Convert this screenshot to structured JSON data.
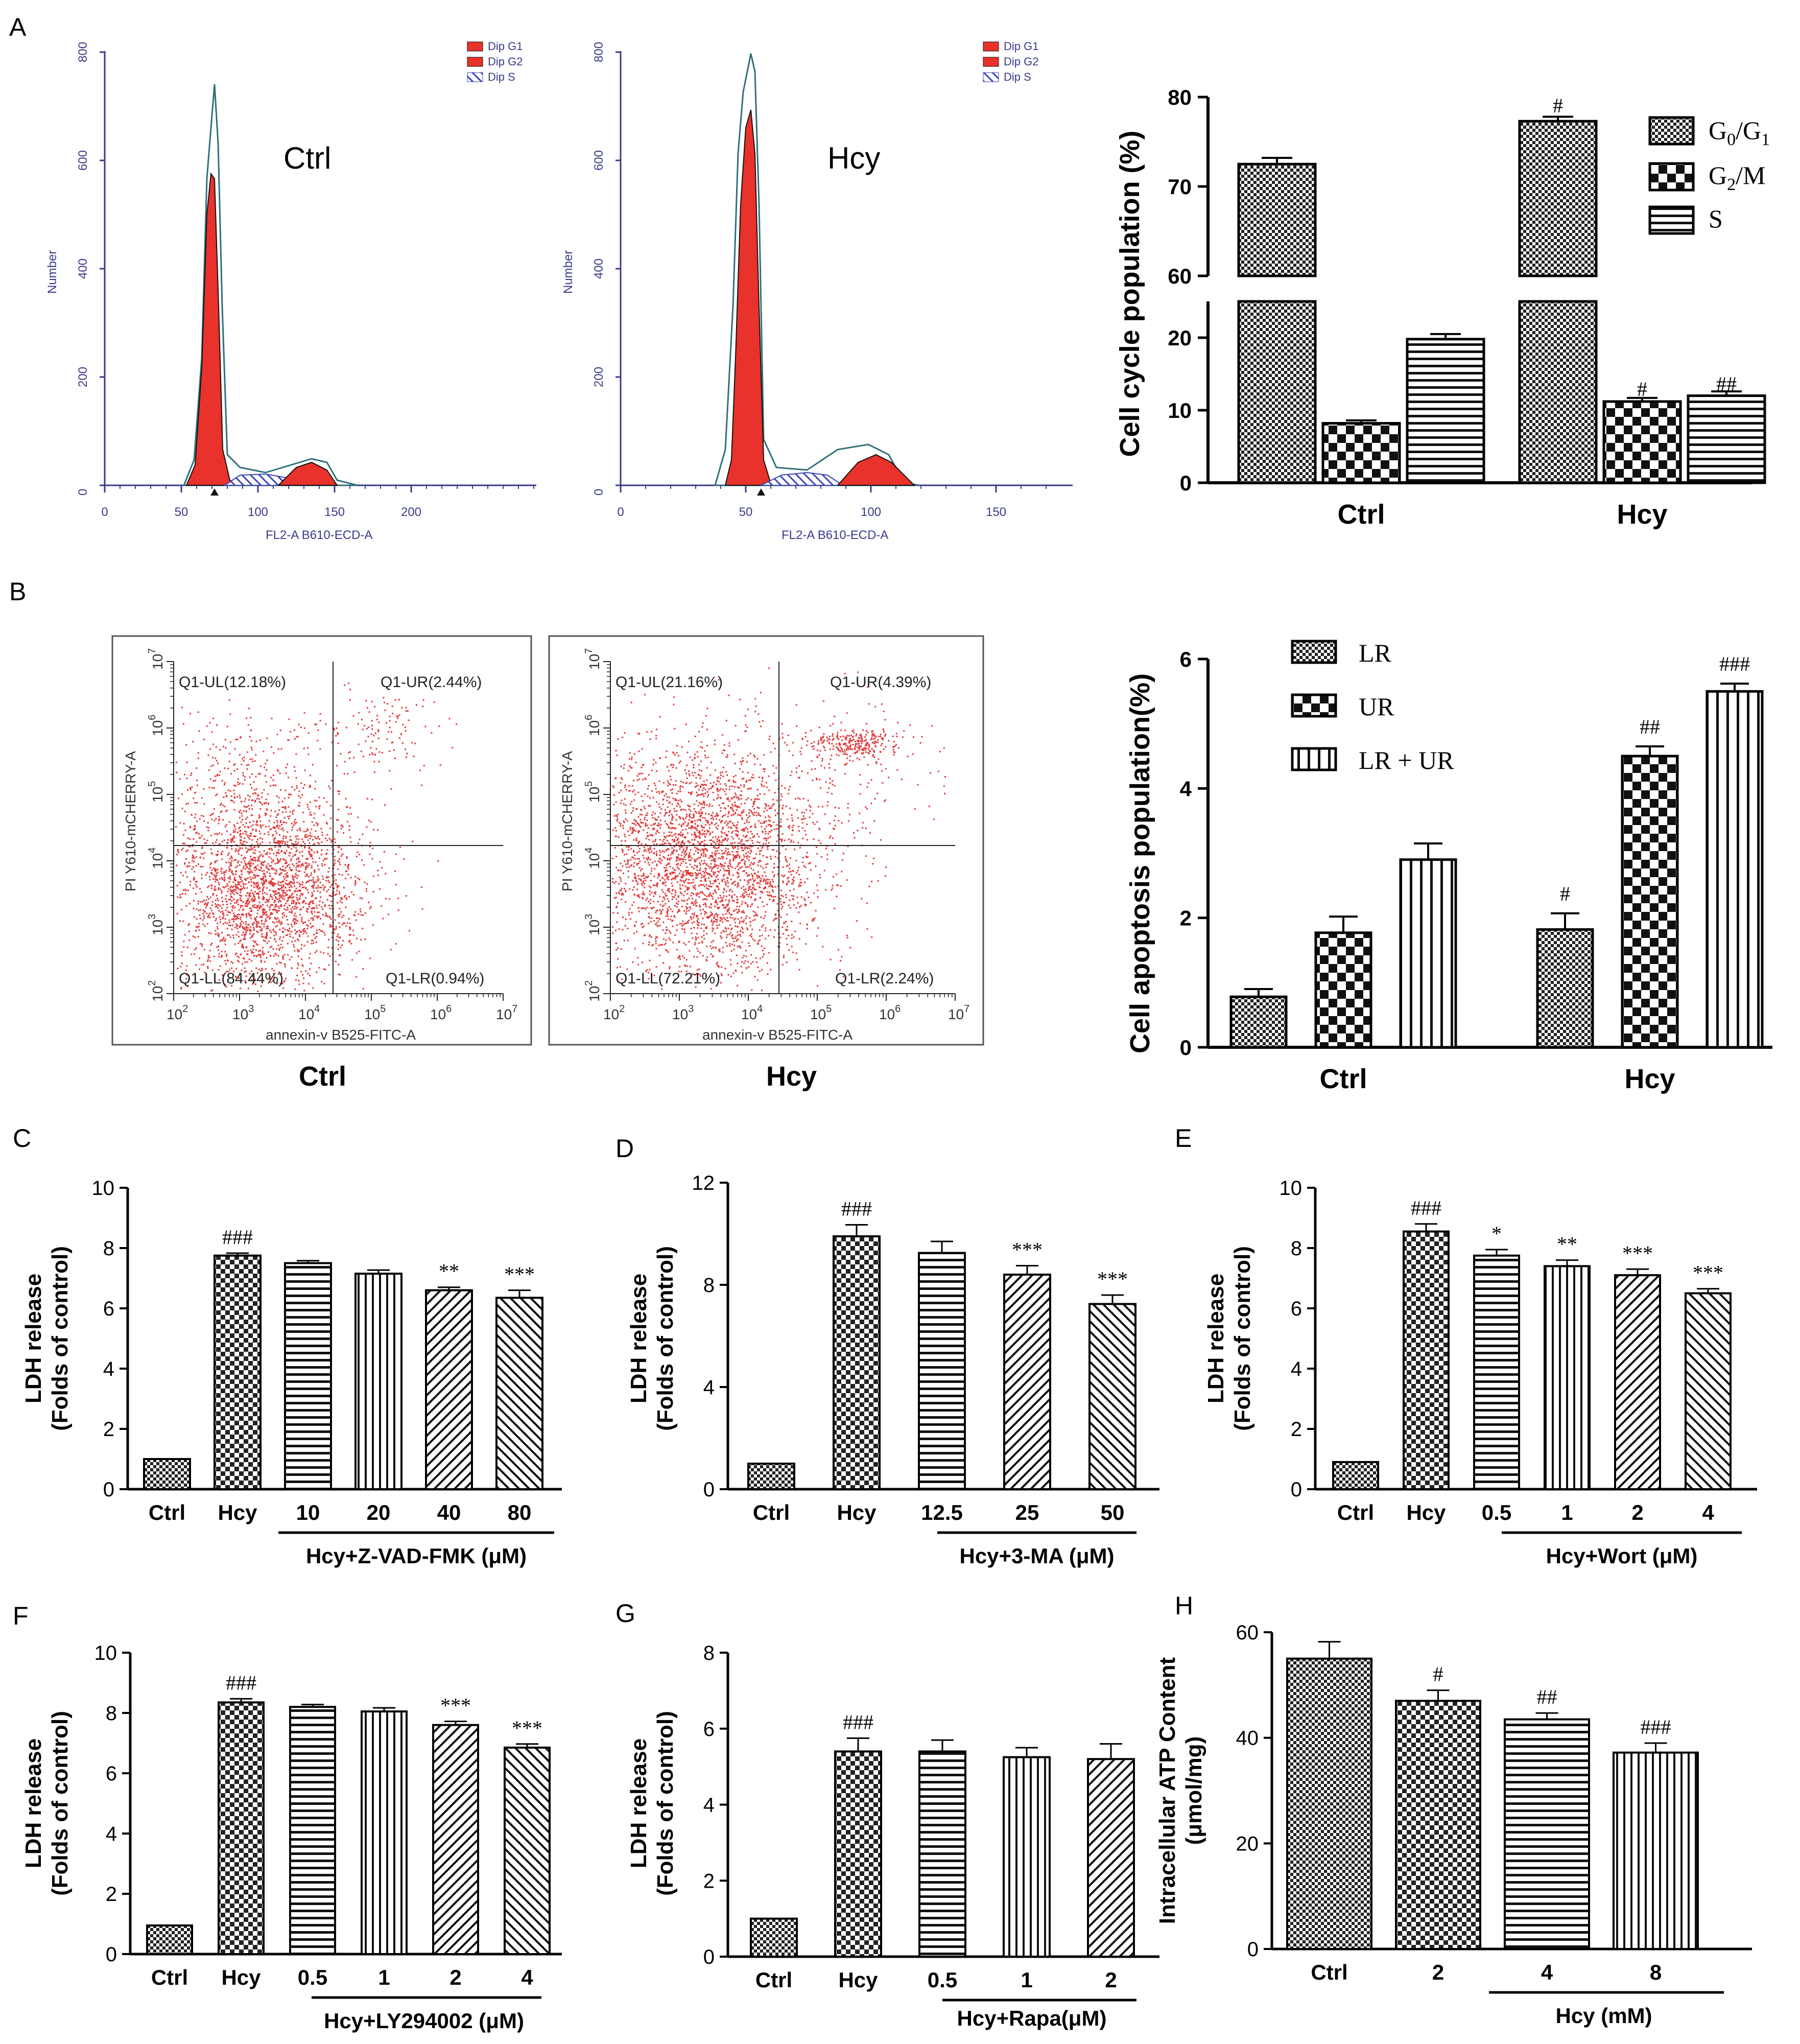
{
  "panel_labels": [
    "A",
    "B",
    "C",
    "D",
    "E",
    "F",
    "G",
    "H"
  ],
  "flow_histograms": [
    {
      "label": "Ctrl",
      "legend": [
        "Dip G1",
        "Dip G2",
        "Dip S"
      ],
      "ylabel": "Number",
      "xlabel": "FL2-A B610-ECD-A",
      "yticks": [
        "0",
        "200",
        "400",
        "600",
        "800"
      ],
      "xticks": [
        "0",
        "50",
        "100",
        "150",
        "200"
      ]
    },
    {
      "label": "Hcy",
      "legend": [
        "Dip G1",
        "Dip G2",
        "Dip S"
      ],
      "ylabel": "Number",
      "xlabel": "FL2-A B610-ECD-A",
      "yticks": [
        "0",
        "200",
        "400",
        "600",
        "800"
      ],
      "xticks": [
        "0",
        "50",
        "100",
        "150"
      ]
    }
  ],
  "scatter_plots": [
    {
      "label": "Ctrl",
      "ylabel": "PI Y610-mCHERRY-A",
      "xlabel": "annexin-v B525-FITC-A",
      "quadrants": {
        "UL": "Q1-UL(12.18%)",
        "UR": "Q1-UR(2.44%)",
        "LL": "Q1-LL(84.44%)",
        "LR": "Q1-LR(0.94%)"
      }
    },
    {
      "label": "Hcy",
      "ylabel": "PI Y610-mCHERRY-A",
      "xlabel": "annexin-v B525-FITC-A",
      "quadrants": {
        "UL": "Q1-UL(21.16%)",
        "UR": "Q1-UR(4.39%)",
        "LL": "Q1-LL(72.21%)",
        "LR": "Q1-LR(2.24%)"
      }
    }
  ],
  "log_ticks": {
    "base": "10",
    "exps": [
      "2",
      "3",
      "4",
      "5",
      "6",
      "7"
    ]
  },
  "colors": {
    "g1": "#e8322b",
    "g2": "#e8322b",
    "s_hatch": "#3b46b5",
    "dot": "#e03a3a",
    "outline": "#2f6f7a"
  },
  "chart_data": [
    {
      "id": "A",
      "type": "bar",
      "ylabel": "Cell cycle population (%)",
      "categories": [
        "Ctrl",
        "Hcy"
      ],
      "series": [
        {
          "name": "G0/G1",
          "values": [
            72.5,
            77.3
          ]
        },
        {
          "name": "G2/M",
          "values": [
            8.2,
            11.2
          ]
        },
        {
          "name": "S",
          "values": [
            19.8,
            12.0
          ]
        }
      ],
      "errors": [
        [
          0.7,
          0.5
        ],
        [
          0.4,
          0.5
        ],
        [
          0.7,
          0.6
        ]
      ],
      "sig": [
        [
          "",
          ""
        ],
        [
          "",
          "#"
        ],
        [
          "",
          "##"
        ],
        [
          "#"
        ]
      ],
      "yticks": [
        "0",
        "10",
        "20",
        "60",
        "70",
        "80"
      ],
      "ybreak": [
        25,
        60
      ],
      "legend_labels": [
        "G",
        "0",
        "/G",
        "1",
        "G",
        "2",
        "/M",
        "S"
      ]
    },
    {
      "id": "B",
      "type": "bar",
      "ylabel": "Cell apoptosis population(%)",
      "categories": [
        "Ctrl",
        "Hcy"
      ],
      "series": [
        {
          "name": "LR",
          "values": [
            0.78,
            1.82
          ]
        },
        {
          "name": "UR",
          "values": [
            1.77,
            4.5
          ]
        },
        {
          "name": "LR + UR",
          "values": [
            2.9,
            5.5
          ]
        }
      ],
      "errors": [
        [
          0.12,
          0.25
        ],
        [
          0.25,
          0.15
        ],
        [
          0.25,
          0.12
        ]
      ],
      "sig_labels": [
        "#",
        "##",
        "###"
      ],
      "yticks": [
        "0",
        "2",
        "4",
        "6"
      ],
      "ylim": [
        0,
        6
      ]
    },
    {
      "id": "C",
      "type": "bar",
      "ylabel": [
        "LDH release",
        "(Folds of control)"
      ],
      "categories": [
        "Ctrl",
        "Hcy",
        "10",
        "20",
        "40",
        "80"
      ],
      "values": [
        1.0,
        7.75,
        7.5,
        7.15,
        6.6,
        6.35
      ],
      "errors": [
        0,
        0.08,
        0.08,
        0.12,
        0.1,
        0.25
      ],
      "sig": [
        "",
        "###",
        "",
        "",
        "**",
        "***"
      ],
      "yticks": [
        "0",
        "2",
        "4",
        "6",
        "8",
        "10"
      ],
      "ylim": [
        0,
        10
      ],
      "group_label": "Hcy+Z-VAD-FMK (μM)"
    },
    {
      "id": "D",
      "type": "bar",
      "ylabel": [
        "LDH release",
        "(Folds of control)"
      ],
      "categories": [
        "Ctrl",
        "Hcy",
        "12.5",
        "25",
        "50"
      ],
      "values": [
        1.0,
        9.9,
        9.25,
        8.4,
        7.25
      ],
      "errors": [
        0,
        0.45,
        0.45,
        0.35,
        0.35
      ],
      "sig": [
        "",
        "###",
        "",
        "***",
        "***"
      ],
      "yticks": [
        "0",
        "4",
        "8",
        "12"
      ],
      "ylim": [
        0,
        12
      ],
      "group_label": "Hcy+3-MA (μM)"
    },
    {
      "id": "E",
      "type": "bar",
      "ylabel": [
        "LDH release",
        "(Folds of control)"
      ],
      "categories": [
        "Ctrl",
        "Hcy",
        "0.5",
        "1",
        "2",
        "4"
      ],
      "values": [
        0.9,
        8.55,
        7.75,
        7.4,
        7.1,
        6.5
      ],
      "errors": [
        0,
        0.25,
        0.2,
        0.2,
        0.2,
        0.15
      ],
      "sig": [
        "",
        "###",
        "*",
        "**",
        "***",
        "***"
      ],
      "yticks": [
        "0",
        "2",
        "4",
        "6",
        "8",
        "10"
      ],
      "ylim": [
        0,
        10
      ],
      "group_label": "Hcy+Wort (μM)"
    },
    {
      "id": "F",
      "type": "bar",
      "ylabel": [
        "LDH release",
        "(Folds of control)"
      ],
      "categories": [
        "Ctrl",
        "Hcy",
        "0.5",
        "1",
        "2",
        "4"
      ],
      "values": [
        0.95,
        8.35,
        8.2,
        8.05,
        7.6,
        6.85
      ],
      "errors": [
        0,
        0.12,
        0.08,
        0.12,
        0.12,
        0.12
      ],
      "sig": [
        "",
        "###",
        "",
        "",
        "***",
        "***"
      ],
      "yticks": [
        "0",
        "2",
        "4",
        "6",
        "8",
        "10"
      ],
      "ylim": [
        0,
        10
      ],
      "group_label": "Hcy+LY294002 (μM)"
    },
    {
      "id": "G",
      "type": "bar",
      "ylabel": [
        "LDH release",
        "(Folds of control)"
      ],
      "categories": [
        "Ctrl",
        "Hcy",
        "0.5",
        "1",
        "2"
      ],
      "values": [
        1.0,
        5.4,
        5.4,
        5.25,
        5.2
      ],
      "errors": [
        0,
        0.35,
        0.3,
        0.25,
        0.4
      ],
      "sig": [
        "",
        "###",
        "",
        "",
        ""
      ],
      "yticks": [
        "0",
        "2",
        "4",
        "6",
        "8"
      ],
      "ylim": [
        0,
        8
      ],
      "group_label": "Hcy+Rapa(μM)"
    },
    {
      "id": "H",
      "type": "bar",
      "ylabel": [
        "Intracellular ATP Content",
        "(μmol/mg)"
      ],
      "categories": [
        "Ctrl",
        "2",
        "4",
        "8"
      ],
      "values": [
        55,
        47,
        43.5,
        37.2
      ],
      "errors": [
        3.2,
        2.0,
        1.2,
        1.8
      ],
      "sig": [
        "",
        "#",
        "##",
        "###"
      ],
      "yticks": [
        "0",
        "20",
        "40",
        "60"
      ],
      "ylim": [
        0,
        60
      ],
      "group_label": "Hcy (mM)"
    }
  ]
}
